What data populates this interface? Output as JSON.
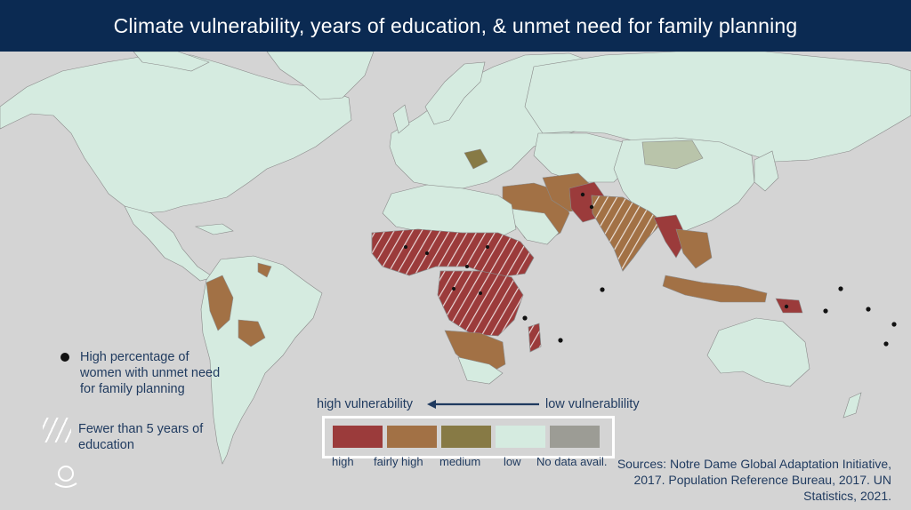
{
  "title": "Climate vulnerability, years of education, & unmet need for family planning",
  "legend": {
    "unmet_need": "High percentage of women with unmet need for family planning",
    "education": "Fewer than 5 years of education",
    "scale_left": "high vulnerability",
    "scale_right": "low vulnerablility",
    "categories": [
      {
        "label": "high",
        "color": "#9b3b3b"
      },
      {
        "label": "fairly high",
        "color": "#a27145"
      },
      {
        "label": "medium",
        "color": "#877a45"
      },
      {
        "label": "low",
        "color": "#d5ebe0"
      },
      {
        "label": "No data avail.",
        "color": "#9c9c95"
      }
    ]
  },
  "sources": "Sources: Notre Dame Global Adaptation Initiative, 2017. Population Reference Bureau, 2017. UN Statistics, 2021.",
  "colors": {
    "ocean": "#d4d4d4",
    "title_bg": "#0b2a52",
    "high": "#9b3b3b",
    "fairly_high": "#a27145",
    "medium": "#877a45",
    "low": "#d5ebe0",
    "no_data": "#9c9c95",
    "text": "#1f3a5f"
  },
  "icons": {
    "dot": "unmet-need-dot-icon",
    "hatch": "education-hatch-icon",
    "arrow": "left-arrow-icon",
    "logo": "organization-logo-icon"
  }
}
